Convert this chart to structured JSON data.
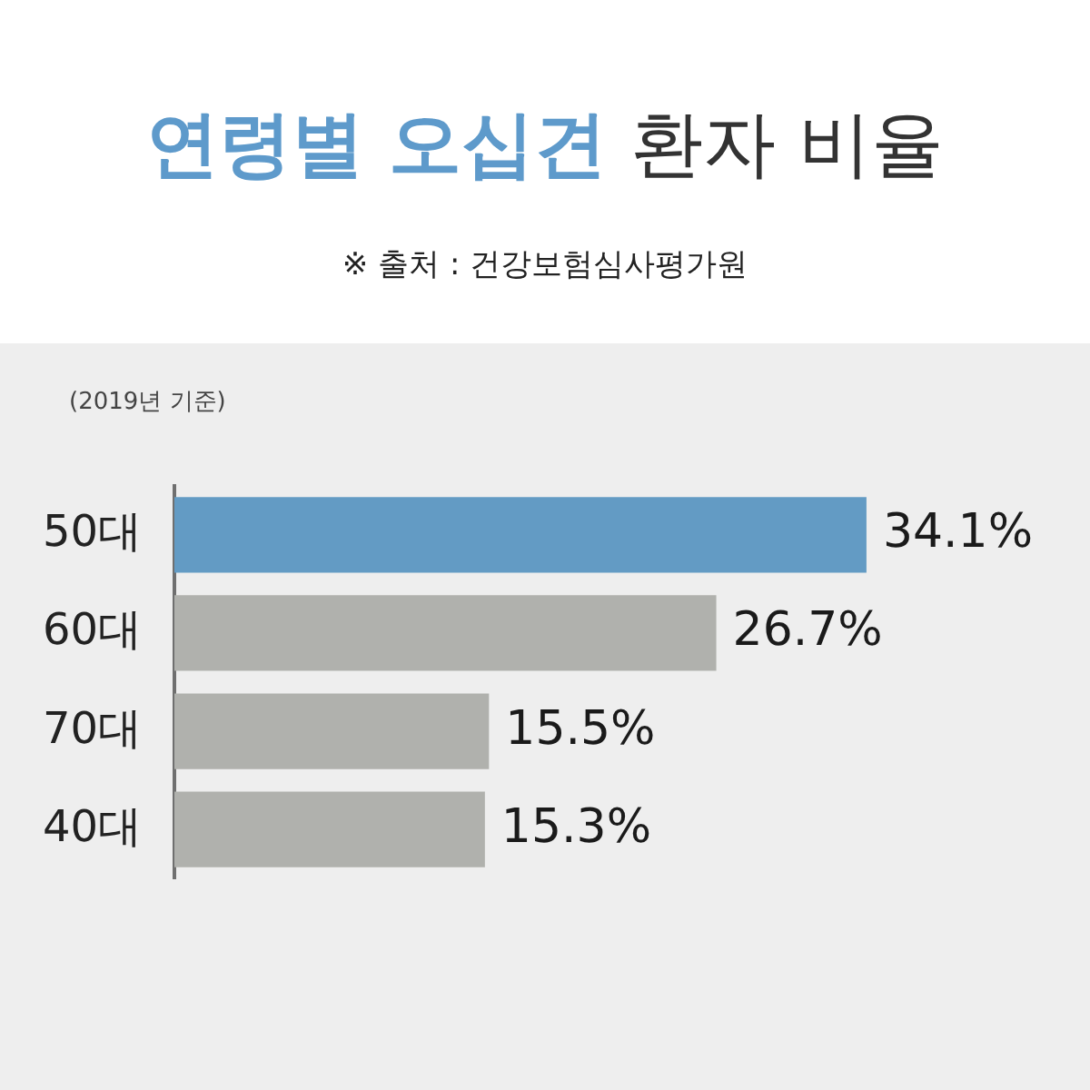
{
  "chart_data": {
    "type": "bar",
    "orientation": "horizontal",
    "title": "연령별 오십견 환자 비율",
    "subtitle": "※ 출처 : 건강보험심사평가원",
    "annotations": [
      "(2019년 기준)"
    ],
    "categories": [
      "50대",
      "60대",
      "70대",
      "40대"
    ],
    "values": [
      34.1,
      26.7,
      15.5,
      15.3
    ],
    "colors": [
      "#639bc4",
      "#b0b1ad",
      "#b0b1ad",
      "#b0b1ad"
    ],
    "value_labels": [
      "34.1%",
      "26.7%",
      "15.5%",
      "15.3%"
    ],
    "grid": false,
    "legend": false,
    "tick_labels": "y"
  }
}
